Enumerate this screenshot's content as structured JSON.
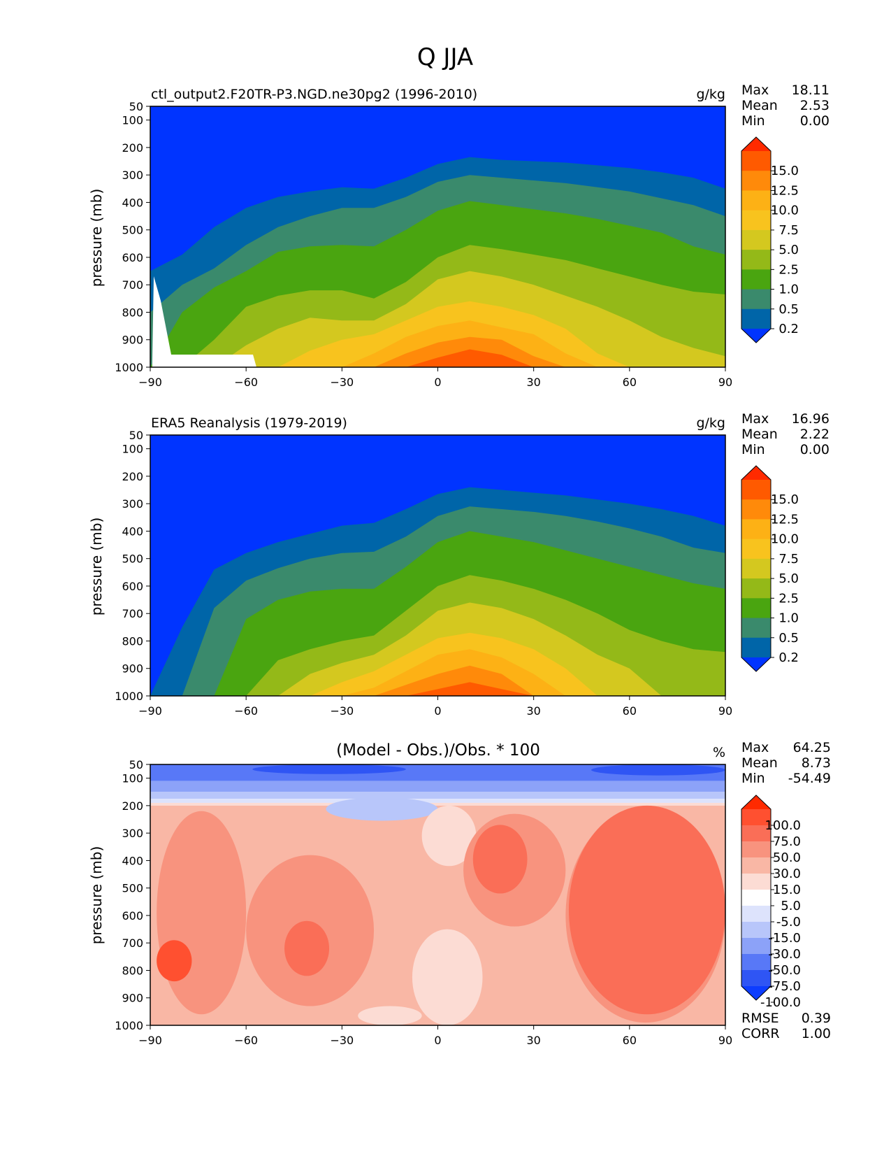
{
  "figure_title": "Q JJA",
  "chart_data": [
    {
      "type": "heatmap",
      "title": "ctl_output2.F20TR-P3.NGD.ne30pg2 (1996-2010)",
      "units": "g/kg",
      "xlabel": "",
      "ylabel": "pressure (mb)",
      "xlim": [
        -90,
        90
      ],
      "ylim": [
        1000,
        50
      ],
      "xticks": [
        -90,
        -60,
        -30,
        0,
        30,
        60,
        90
      ],
      "xtick_labels": [
        "−90",
        "−60",
        "−30",
        "0",
        "30",
        "60",
        "90"
      ],
      "yticks": [
        50,
        100,
        200,
        300,
        400,
        500,
        600,
        700,
        800,
        900,
        1000
      ],
      "stats": [
        {
          "label": "Max",
          "value": "18.11"
        },
        {
          "label": "Mean",
          "value": "2.53"
        },
        {
          "label": "Min",
          "value": "0.00"
        }
      ],
      "colorbar": {
        "levels": [
          "15.0",
          "12.5",
          "10.0",
          "7.5",
          "5.0",
          "2.5",
          "1.0",
          "0.5",
          "0.2"
        ],
        "colors": [
          "#ff2a00",
          "#ff5a00",
          "#ff8a0a",
          "#fdb115",
          "#f8c31e",
          "#d4c81f",
          "#94b918",
          "#4aa510",
          "#3a8a6c",
          "#0065a8",
          "#0034ff"
        ]
      },
      "contour_levels": [
        0.2,
        0.5,
        1.0,
        2.5,
        5.0,
        7.5,
        10.0,
        12.5,
        15.0
      ],
      "lats": [
        -90,
        -80,
        -70,
        -60,
        -50,
        -40,
        -30,
        -20,
        -10,
        0,
        10,
        20,
        30,
        40,
        50,
        60,
        70,
        80,
        90
      ],
      "contour_tops_mb": [
        [
          650,
          590,
          490,
          420,
          380,
          360,
          345,
          350,
          310,
          260,
          235,
          245,
          250,
          255,
          265,
          275,
          290,
          310,
          350
        ],
        [
          800,
          700,
          640,
          555,
          490,
          450,
          420,
          420,
          380,
          325,
          300,
          310,
          320,
          330,
          345,
          360,
          385,
          410,
          450
        ],
        [
          1000,
          800,
          710,
          650,
          580,
          560,
          555,
          560,
          500,
          430,
          395,
          410,
          425,
          440,
          460,
          485,
          510,
          560,
          590
        ],
        [
          1000,
          1000,
          900,
          780,
          740,
          720,
          720,
          750,
          690,
          600,
          555,
          570,
          590,
          610,
          640,
          670,
          700,
          725,
          735
        ],
        [
          1000,
          1000,
          1000,
          920,
          860,
          820,
          830,
          830,
          770,
          680,
          650,
          670,
          700,
          740,
          780,
          830,
          890,
          930,
          960
        ],
        [
          1000,
          1000,
          1000,
          1000,
          1000,
          940,
          900,
          880,
          830,
          780,
          760,
          780,
          810,
          860,
          950,
          1000,
          1000,
          1000,
          1000
        ],
        [
          1000,
          1000,
          1000,
          1000,
          1000,
          1000,
          1000,
          950,
          890,
          850,
          830,
          855,
          880,
          950,
          1000,
          1000,
          1000,
          1000,
          1000
        ],
        [
          1000,
          1000,
          1000,
          1000,
          1000,
          1000,
          1000,
          1000,
          950,
          910,
          890,
          900,
          960,
          1000,
          1000,
          1000,
          1000,
          1000,
          1000
        ],
        [
          1000,
          1000,
          1000,
          1000,
          1000,
          1000,
          1000,
          1000,
          1000,
          965,
          935,
          955,
          1000,
          1000,
          1000,
          1000,
          1000,
          1000,
          1000
        ]
      ]
    },
    {
      "type": "heatmap",
      "title": "ERA5 Reanalysis (1979-2019)",
      "units": "g/kg",
      "xlabel": "",
      "ylabel": "pressure (mb)",
      "xlim": [
        -90,
        90
      ],
      "ylim": [
        1000,
        50
      ],
      "xticks": [
        -90,
        -60,
        -30,
        0,
        30,
        60,
        90
      ],
      "xtick_labels": [
        "−90",
        "−60",
        "−30",
        "0",
        "30",
        "60",
        "90"
      ],
      "yticks": [
        50,
        100,
        200,
        300,
        400,
        500,
        600,
        700,
        800,
        900,
        1000
      ],
      "stats": [
        {
          "label": "Max",
          "value": "16.96"
        },
        {
          "label": "Mean",
          "value": "2.22"
        },
        {
          "label": "Min",
          "value": "0.00"
        }
      ],
      "colorbar": {
        "levels": [
          "15.0",
          "12.5",
          "10.0",
          "7.5",
          "5.0",
          "2.5",
          "1.0",
          "0.5",
          "0.2"
        ],
        "colors": [
          "#ff2a00",
          "#ff5a00",
          "#ff8a0a",
          "#fdb115",
          "#f8c31e",
          "#d4c81f",
          "#94b918",
          "#4aa510",
          "#3a8a6c",
          "#0065a8",
          "#0034ff"
        ]
      },
      "contour_levels": [
        0.2,
        0.5,
        1.0,
        2.5,
        5.0,
        7.5,
        10.0,
        12.5,
        15.0
      ],
      "lats": [
        -90,
        -80,
        -70,
        -60,
        -50,
        -40,
        -30,
        -20,
        -10,
        0,
        10,
        20,
        30,
        40,
        50,
        60,
        70,
        80,
        90
      ],
      "contour_tops_mb": [
        [
          1000,
          750,
          540,
          480,
          440,
          410,
          380,
          370,
          320,
          265,
          240,
          250,
          260,
          270,
          285,
          300,
          320,
          345,
          380
        ],
        [
          1000,
          1000,
          680,
          580,
          535,
          500,
          480,
          475,
          420,
          345,
          310,
          320,
          330,
          345,
          365,
          390,
          420,
          460,
          480
        ],
        [
          1000,
          1000,
          1000,
          720,
          650,
          620,
          610,
          610,
          530,
          440,
          400,
          420,
          440,
          470,
          500,
          530,
          560,
          590,
          610
        ],
        [
          1000,
          1000,
          1000,
          1000,
          870,
          830,
          800,
          780,
          690,
          600,
          560,
          580,
          610,
          650,
          700,
          760,
          800,
          830,
          840
        ],
        [
          1000,
          1000,
          1000,
          1000,
          1000,
          920,
          880,
          850,
          780,
          690,
          660,
          680,
          720,
          780,
          850,
          900,
          1000,
          1000,
          1000
        ],
        [
          1000,
          1000,
          1000,
          1000,
          1000,
          1000,
          950,
          910,
          850,
          790,
          770,
          790,
          830,
          900,
          1000,
          1000,
          1000,
          1000,
          1000
        ],
        [
          1000,
          1000,
          1000,
          1000,
          1000,
          1000,
          1000,
          970,
          910,
          850,
          830,
          860,
          920,
          1000,
          1000,
          1000,
          1000,
          1000,
          1000
        ],
        [
          1000,
          1000,
          1000,
          1000,
          1000,
          1000,
          1000,
          1000,
          960,
          920,
          890,
          920,
          1000,
          1000,
          1000,
          1000,
          1000,
          1000,
          1000
        ],
        [
          1000,
          1000,
          1000,
          1000,
          1000,
          1000,
          1000,
          1000,
          1000,
          975,
          950,
          975,
          1000,
          1000,
          1000,
          1000,
          1000,
          1000,
          1000
        ]
      ]
    },
    {
      "type": "heatmap",
      "title": "(Model - Obs.)/Obs. * 100",
      "units": "%",
      "xlabel": "",
      "ylabel": "pressure (mb)",
      "xlim": [
        -90,
        90
      ],
      "ylim": [
        1000,
        50
      ],
      "xticks": [
        -90,
        -60,
        -30,
        0,
        30,
        60,
        90
      ],
      "xtick_labels": [
        "−90",
        "−60",
        "−30",
        "0",
        "30",
        "60",
        "90"
      ],
      "yticks": [
        50,
        100,
        200,
        300,
        400,
        500,
        600,
        700,
        800,
        900,
        1000
      ],
      "stats": [
        {
          "label": "Max",
          "value": "64.25"
        },
        {
          "label": "Mean",
          "value": "8.73"
        },
        {
          "label": "Min",
          "value": "-54.49"
        }
      ],
      "extra_stats": [
        {
          "label": "RMSE",
          "value": "0.39"
        },
        {
          "label": "CORR",
          "value": "1.00"
        }
      ],
      "colorbar": {
        "levels": [
          "100.0",
          "75.0",
          "50.0",
          "30.0",
          "15.0",
          "5.0",
          "-5.0",
          "-15.0",
          "-30.0",
          "-50.0",
          "-75.0",
          "-100.0"
        ],
        "colors": [
          "#ff2a00",
          "#ff5030",
          "#fa6e57",
          "#f8937e",
          "#f9b7a5",
          "#fcdcd4",
          "#ffffff",
          "#dde3fc",
          "#b8c6fa",
          "#8ca2f8",
          "#5878f7",
          "#2f55f4",
          "#0d3dff"
        ]
      },
      "bands": [
        {
          "level": "-50.0",
          "top": 50,
          "bottom": 110
        },
        {
          "level": "-30.0",
          "top": 110,
          "bottom": 150
        },
        {
          "level": "-15.0",
          "top": 150,
          "bottom": 175
        },
        {
          "level": "-5.0",
          "top": 175,
          "bottom": 190
        },
        {
          "level": "5.0",
          "top": 190,
          "bottom": 200
        },
        {
          "level": "15.0",
          "top": 200,
          "bottom": 1000
        }
      ],
      "blobs": [
        {
          "level": "-75.0",
          "lat_min": -58,
          "lat_max": -10,
          "p_top": 50,
          "p_bottom": 85
        },
        {
          "level": "-75.0",
          "lat_min": 48,
          "lat_max": 90,
          "p_top": 50,
          "p_bottom": 90
        },
        {
          "level": "-15.0",
          "lat_min": -35,
          "lat_max": 0,
          "p_top": 170,
          "p_bottom": 255
        },
        {
          "level": "5.0",
          "lat_min": -5,
          "lat_max": 12,
          "p_top": 200,
          "p_bottom": 420
        },
        {
          "level": "5.0",
          "lat_min": -8,
          "lat_max": 14,
          "p_top": 650,
          "p_bottom": 1000
        },
        {
          "level": "5.0",
          "lat_min": -25,
          "lat_max": -5,
          "p_top": 930,
          "p_bottom": 1000
        },
        {
          "level": "30.0",
          "lat_min": -88,
          "lat_max": -60,
          "p_top": 220,
          "p_bottom": 960
        },
        {
          "level": "30.0",
          "lat_min": -60,
          "lat_max": -20,
          "p_top": 380,
          "p_bottom": 930
        },
        {
          "level": "30.0",
          "lat_min": 8,
          "lat_max": 40,
          "p_top": 230,
          "p_bottom": 640
        },
        {
          "level": "30.0",
          "lat_min": 40,
          "lat_max": 90,
          "p_top": 210,
          "p_bottom": 990
        },
        {
          "level": "50.0",
          "lat_min": -48,
          "lat_max": -34,
          "p_top": 620,
          "p_bottom": 820
        },
        {
          "level": "50.0",
          "lat_min": 11,
          "lat_max": 28,
          "p_top": 270,
          "p_bottom": 520
        },
        {
          "level": "50.0",
          "lat_min": 41,
          "lat_max": 90,
          "p_top": 200,
          "p_bottom": 960
        },
        {
          "level": "75.0",
          "lat_min": -88,
          "lat_max": -77,
          "p_top": 690,
          "p_bottom": 840
        }
      ]
    }
  ]
}
